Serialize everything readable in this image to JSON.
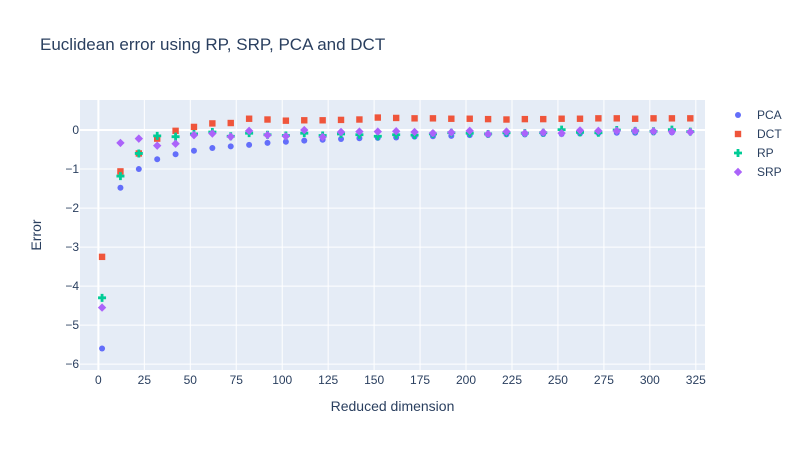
{
  "chart_data": {
    "type": "scatter",
    "title": "Euclidean error using RP, SRP, PCA and DCT",
    "xlabel": "Reduced dimension",
    "ylabel": "Error",
    "xlim": [
      -10,
      330
    ],
    "ylim": [
      -6.15,
      0.77
    ],
    "xticks": [
      0,
      25,
      50,
      75,
      100,
      125,
      150,
      175,
      200,
      225,
      250,
      275,
      300,
      325
    ],
    "yticks": [
      -6,
      -5,
      -4,
      -3,
      -2,
      -1,
      0
    ],
    "ytick_labels": [
      "−6",
      "−5",
      "−4",
      "−3",
      "−2",
      "−1",
      "0"
    ],
    "grid": true,
    "legend_position": "right",
    "x": [
      2,
      12,
      22,
      32,
      42,
      52,
      62,
      72,
      82,
      92,
      102,
      112,
      122,
      132,
      142,
      152,
      162,
      172,
      182,
      192,
      202,
      212,
      222,
      232,
      242,
      252,
      262,
      272,
      282,
      292,
      302,
      312,
      322
    ],
    "series": [
      {
        "name": "PCA",
        "marker": "circle",
        "color": "#636efa",
        "values": [
          -5.6,
          -1.48,
          -1.0,
          -0.75,
          -0.62,
          -0.53,
          -0.46,
          -0.42,
          -0.38,
          -0.33,
          -0.3,
          -0.27,
          -0.25,
          -0.23,
          -0.21,
          -0.2,
          -0.19,
          -0.17,
          -0.16,
          -0.15,
          -0.13,
          -0.12,
          -0.11,
          -0.11,
          -0.1,
          -0.1,
          -0.09,
          -0.08,
          -0.07,
          -0.07,
          -0.06,
          -0.06,
          -0.05
        ]
      },
      {
        "name": "DCT",
        "marker": "square",
        "color": "#ef553b",
        "values": [
          -3.25,
          -1.06,
          -0.6,
          -0.22,
          -0.02,
          0.08,
          0.17,
          0.18,
          0.29,
          0.27,
          0.24,
          0.25,
          0.25,
          0.26,
          0.27,
          0.32,
          0.31,
          0.3,
          0.3,
          0.29,
          0.29,
          0.28,
          0.27,
          0.28,
          0.28,
          0.29,
          0.29,
          0.3,
          0.3,
          0.29,
          0.3,
          0.3,
          0.3
        ]
      },
      {
        "name": "RP",
        "marker": "cross",
        "color": "#00cc96",
        "values": [
          -4.3,
          -1.18,
          -0.6,
          -0.15,
          -0.17,
          -0.1,
          -0.05,
          -0.16,
          -0.08,
          -0.12,
          -0.14,
          -0.08,
          -0.14,
          -0.1,
          -0.12,
          -0.16,
          -0.12,
          -0.13,
          -0.1,
          -0.07,
          -0.08,
          -0.1,
          -0.07,
          -0.08,
          -0.07,
          0.01,
          -0.06,
          -0.07,
          0.0,
          -0.02,
          -0.03,
          0.01,
          -0.04
        ]
      },
      {
        "name": "SRP",
        "marker": "diamond",
        "color": "#ab63fa",
        "values": [
          -4.55,
          -0.33,
          -0.22,
          -0.4,
          -0.35,
          -0.13,
          -0.09,
          -0.17,
          -0.02,
          -0.13,
          -0.16,
          0.0,
          -0.18,
          -0.05,
          -0.04,
          -0.04,
          -0.03,
          -0.05,
          -0.08,
          -0.06,
          -0.02,
          -0.1,
          -0.04,
          -0.08,
          -0.06,
          -0.08,
          -0.01,
          -0.02,
          -0.02,
          -0.02,
          -0.03,
          -0.04,
          -0.05
        ]
      }
    ]
  }
}
